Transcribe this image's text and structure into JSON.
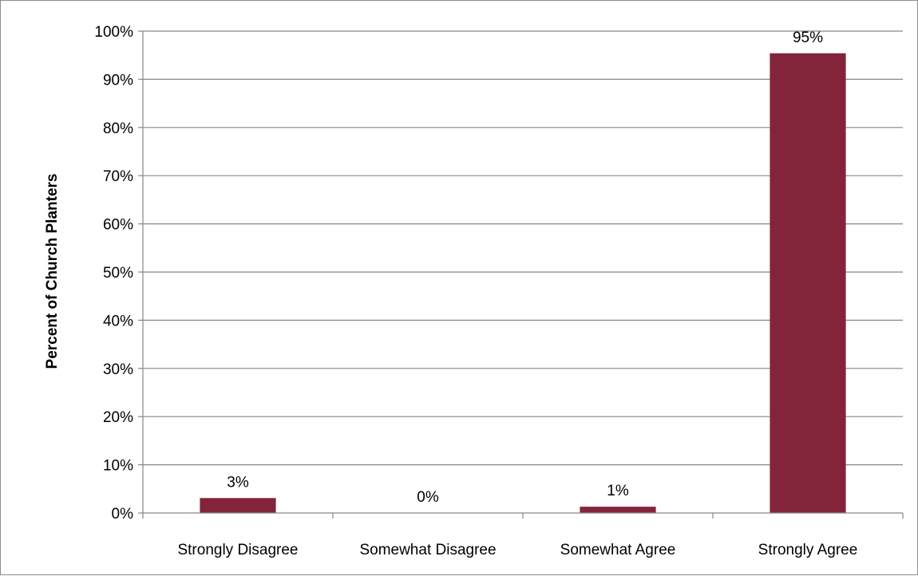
{
  "chart_data": {
    "type": "bar",
    "title": "",
    "xlabel": "",
    "ylabel": "Percent of Church Planters",
    "categories": [
      "Strongly Disagree",
      "Somewhat Disagree",
      "Somewhat Agree",
      "Strongly Agree"
    ],
    "values": [
      3.1,
      0,
      1.3,
      95.4
    ],
    "data_labels": [
      "3%",
      "0%",
      "1%",
      "95%"
    ],
    "ylim": [
      0,
      100
    ],
    "y_ticks": [
      0,
      10,
      20,
      30,
      40,
      50,
      60,
      70,
      80,
      90,
      100
    ],
    "y_tick_labels": [
      "0%",
      "10%",
      "20%",
      "30%",
      "40%",
      "50%",
      "60%",
      "70%",
      "80%",
      "90%",
      "100%"
    ],
    "grid": true,
    "legend": "none",
    "bar_color": "#84243A",
    "grid_color": "#878787"
  }
}
